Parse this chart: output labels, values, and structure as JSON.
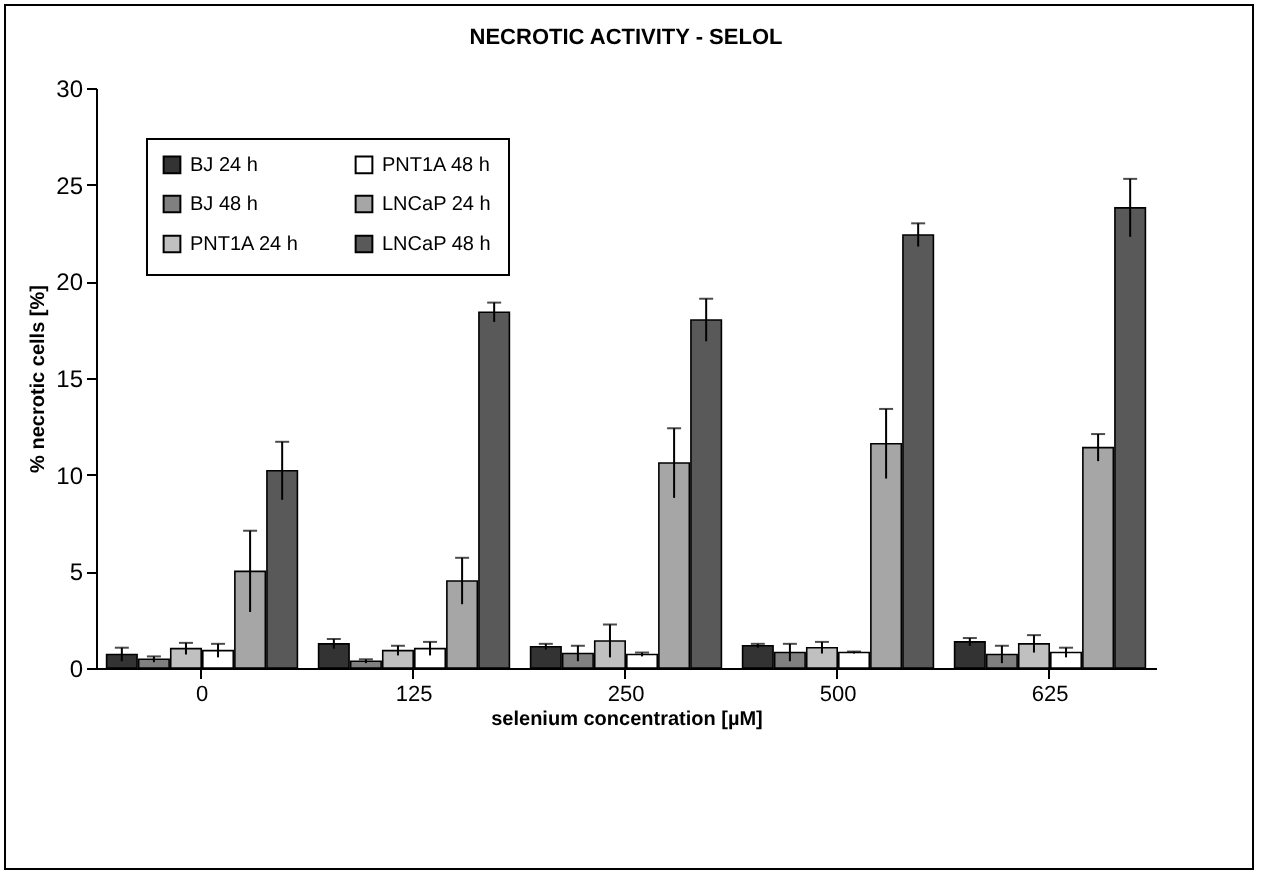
{
  "chart_data": {
    "type": "bar",
    "title": "NECROTIC ACTIVITY - SELOL",
    "xlabel": "selenium concentration [µM]",
    "ylabel": "% necrotic cells [%]",
    "categories": [
      "0",
      "125",
      "250",
      "500",
      "625"
    ],
    "series": [
      {
        "name": "BJ 24 h",
        "color": "#333333",
        "values": [
          0.7,
          1.25,
          1.1,
          1.15,
          1.35
        ],
        "errors": [
          0.35,
          0.25,
          0.15,
          0.1,
          0.2
        ]
      },
      {
        "name": "BJ 48 h",
        "color": "#808080",
        "values": [
          0.45,
          0.35,
          0.75,
          0.8,
          0.7
        ],
        "errors": [
          0.15,
          0.1,
          0.4,
          0.45,
          0.45
        ]
      },
      {
        "name": "PNT1A 24 h",
        "color": "#c0c0c0",
        "values": [
          1.0,
          0.9,
          1.4,
          1.05,
          1.25
        ],
        "errors": [
          0.3,
          0.25,
          0.85,
          0.3,
          0.45
        ]
      },
      {
        "name": "PNT1A 48 h",
        "color": "#ffffff",
        "values": [
          0.9,
          1.0,
          0.7,
          0.8,
          0.8
        ],
        "errors": [
          0.35,
          0.35,
          0.1,
          0.05,
          0.25
        ]
      },
      {
        "name": "LNCaP 24 h",
        "color": "#a6a6a6",
        "values": [
          5.0,
          4.5,
          10.6,
          11.6,
          11.4
        ],
        "errors": [
          2.1,
          1.2,
          1.8,
          1.8,
          0.7
        ]
      },
      {
        "name": "LNCaP 48 h",
        "color": "#595959",
        "values": [
          10.2,
          18.4,
          18.0,
          22.4,
          23.8
        ],
        "errors": [
          1.5,
          0.5,
          1.1,
          0.6,
          1.5
        ]
      }
    ],
    "ylim": [
      0,
      30
    ],
    "yticks": [
      0,
      5,
      10,
      15,
      20,
      25,
      30
    ],
    "grid": false,
    "legend": "top left"
  }
}
